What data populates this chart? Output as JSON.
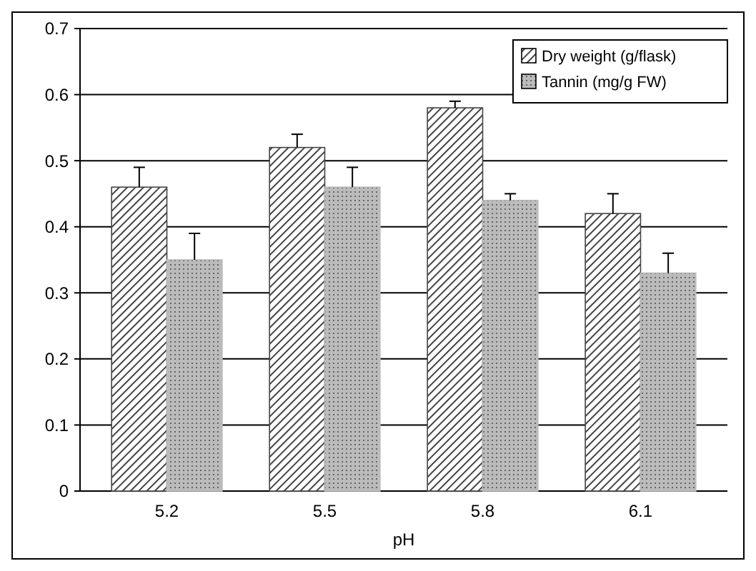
{
  "chart_data": {
    "type": "bar",
    "xlabel": "pH",
    "categories": [
      "5.2",
      "5.5",
      "5.8",
      "6.1"
    ],
    "series": [
      {
        "name": "Dry weight (g/flask)",
        "color": "#444444",
        "values": [
          0.46,
          0.52,
          0.58,
          0.42
        ],
        "errors": [
          [
            0.46,
            0.49
          ],
          [
            0.52,
            0.54
          ],
          [
            0.58,
            0.59
          ],
          [
            0.42,
            0.45
          ]
        ]
      },
      {
        "name": "Tannin (mg/g FW)",
        "color": "#bbbbbb",
        "values": [
          0.35,
          0.46,
          0.44,
          0.33
        ],
        "errors": [
          [
            0.35,
            0.39
          ],
          [
            0.46,
            0.49
          ],
          [
            0.44,
            0.45
          ],
          [
            0.33,
            0.36
          ]
        ]
      }
    ],
    "ylim": [
      0,
      0.7
    ],
    "yticks": [
      0,
      0.1,
      0.2,
      0.3,
      0.4,
      0.5,
      0.6,
      0.7
    ],
    "grid": "y",
    "legend": "top right"
  }
}
